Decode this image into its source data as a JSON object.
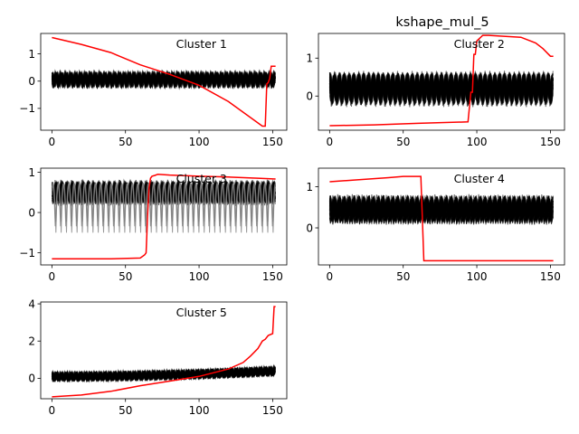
{
  "figure": {
    "title": "kshape_mul_5"
  },
  "colors": {
    "centroid": "#ff0000",
    "members": "#000000",
    "axes": "#000000",
    "background": "#ffffff"
  },
  "chart_data": [
    {
      "type": "line",
      "title": "Cluster 1",
      "xlim": [
        -7.6,
        159.6
      ],
      "ylim": [
        -1.8,
        1.75
      ],
      "xticks": [
        0,
        50,
        100,
        150
      ],
      "yticks": [
        -1,
        0,
        1
      ],
      "members": {
        "count_approx": 40,
        "period": 3.3,
        "center": 0.07,
        "amplitude": 0.18,
        "jitter": 0.11,
        "drift": 0.0
      },
      "centroid": {
        "x": [
          0,
          20,
          40,
          60,
          80,
          100,
          120,
          143,
          145,
          146,
          147,
          148,
          149,
          150,
          152
        ],
        "y": [
          1.6,
          1.35,
          1.05,
          0.6,
          0.25,
          -0.15,
          -0.75,
          -1.65,
          -1.65,
          -0.1,
          -0.05,
          0.1,
          0.55,
          0.55,
          0.55
        ]
      }
    },
    {
      "type": "line",
      "title": "Cluster 2",
      "xlim": [
        -7.6,
        159.6
      ],
      "ylim": [
        -0.9,
        1.65
      ],
      "xticks": [
        0,
        50,
        100,
        150
      ],
      "yticks": [
        0,
        1
      ],
      "members": {
        "count_approx": 40,
        "period": 3.3,
        "center": 0.2,
        "amplitude": 0.3,
        "jitter": 0.12,
        "drift": 0.0
      },
      "centroid": {
        "x": [
          0,
          30,
          60,
          94,
          96,
          97,
          98,
          99,
          100,
          104,
          108,
          130,
          140,
          145,
          150,
          152
        ],
        "y": [
          -0.78,
          -0.76,
          -0.72,
          -0.68,
          0.1,
          0.1,
          1.1,
          1.1,
          1.45,
          1.6,
          1.6,
          1.55,
          1.4,
          1.25,
          1.05,
          1.05
        ]
      }
    },
    {
      "type": "line",
      "title": "Cluster 3",
      "xlim": [
        -7.6,
        159.6
      ],
      "ylim": [
        -1.3,
        1.1
      ],
      "xticks": [
        0,
        50,
        100,
        150
      ],
      "yticks": [
        -1,
        0,
        1
      ],
      "members": {
        "count_approx": 40,
        "period": 3.6,
        "center": 0.5,
        "amplitude": 0.22,
        "jitter": 0.06,
        "drift": 0.0,
        "gray_low": -0.5
      },
      "centroid": {
        "x": [
          0,
          40,
          60,
          63,
          64,
          65,
          66,
          67,
          68,
          70,
          72,
          80,
          100,
          120,
          140,
          152
        ],
        "y": [
          -1.15,
          -1.15,
          -1.13,
          -1.05,
          -1.0,
          -0.1,
          0.6,
          0.85,
          0.9,
          0.92,
          0.95,
          0.93,
          0.9,
          0.88,
          0.85,
          0.83
        ]
      }
    },
    {
      "type": "line",
      "title": "Cluster 4",
      "xlim": [
        -7.6,
        159.6
      ],
      "ylim": [
        -0.9,
        1.45
      ],
      "xticks": [
        0,
        50,
        100,
        150
      ],
      "yticks": [
        0,
        1
      ],
      "members": {
        "count_approx": 40,
        "period": 3.3,
        "center": 0.45,
        "amplitude": 0.25,
        "jitter": 0.1,
        "drift": 0.0
      },
      "centroid": {
        "x": [
          0,
          20,
          40,
          50,
          62,
          63,
          64,
          80,
          100,
          120,
          152
        ],
        "y": [
          1.12,
          1.17,
          1.22,
          1.25,
          1.25,
          0.2,
          -0.8,
          -0.8,
          -0.8,
          -0.8,
          -0.8
        ]
      }
    },
    {
      "type": "line",
      "title": "Cluster 5",
      "xlim": [
        -7.6,
        159.6
      ],
      "ylim": [
        -1.1,
        4.1
      ],
      "xticks": [
        0,
        50,
        100,
        150
      ],
      "yticks": [
        0,
        2,
        4
      ],
      "members": {
        "count_approx": 40,
        "period": 3.3,
        "center": 0.1,
        "amplitude": 0.18,
        "jitter": 0.08,
        "drift": 0.3
      },
      "centroid": {
        "x": [
          0,
          20,
          40,
          60,
          80,
          100,
          110,
          120,
          130,
          135,
          140,
          143,
          145,
          147,
          150,
          151,
          152
        ],
        "y": [
          -1.0,
          -0.9,
          -0.7,
          -0.4,
          -0.15,
          0.1,
          0.3,
          0.5,
          0.85,
          1.2,
          1.6,
          2.0,
          2.1,
          2.3,
          2.4,
          3.85,
          3.85
        ]
      }
    }
  ]
}
